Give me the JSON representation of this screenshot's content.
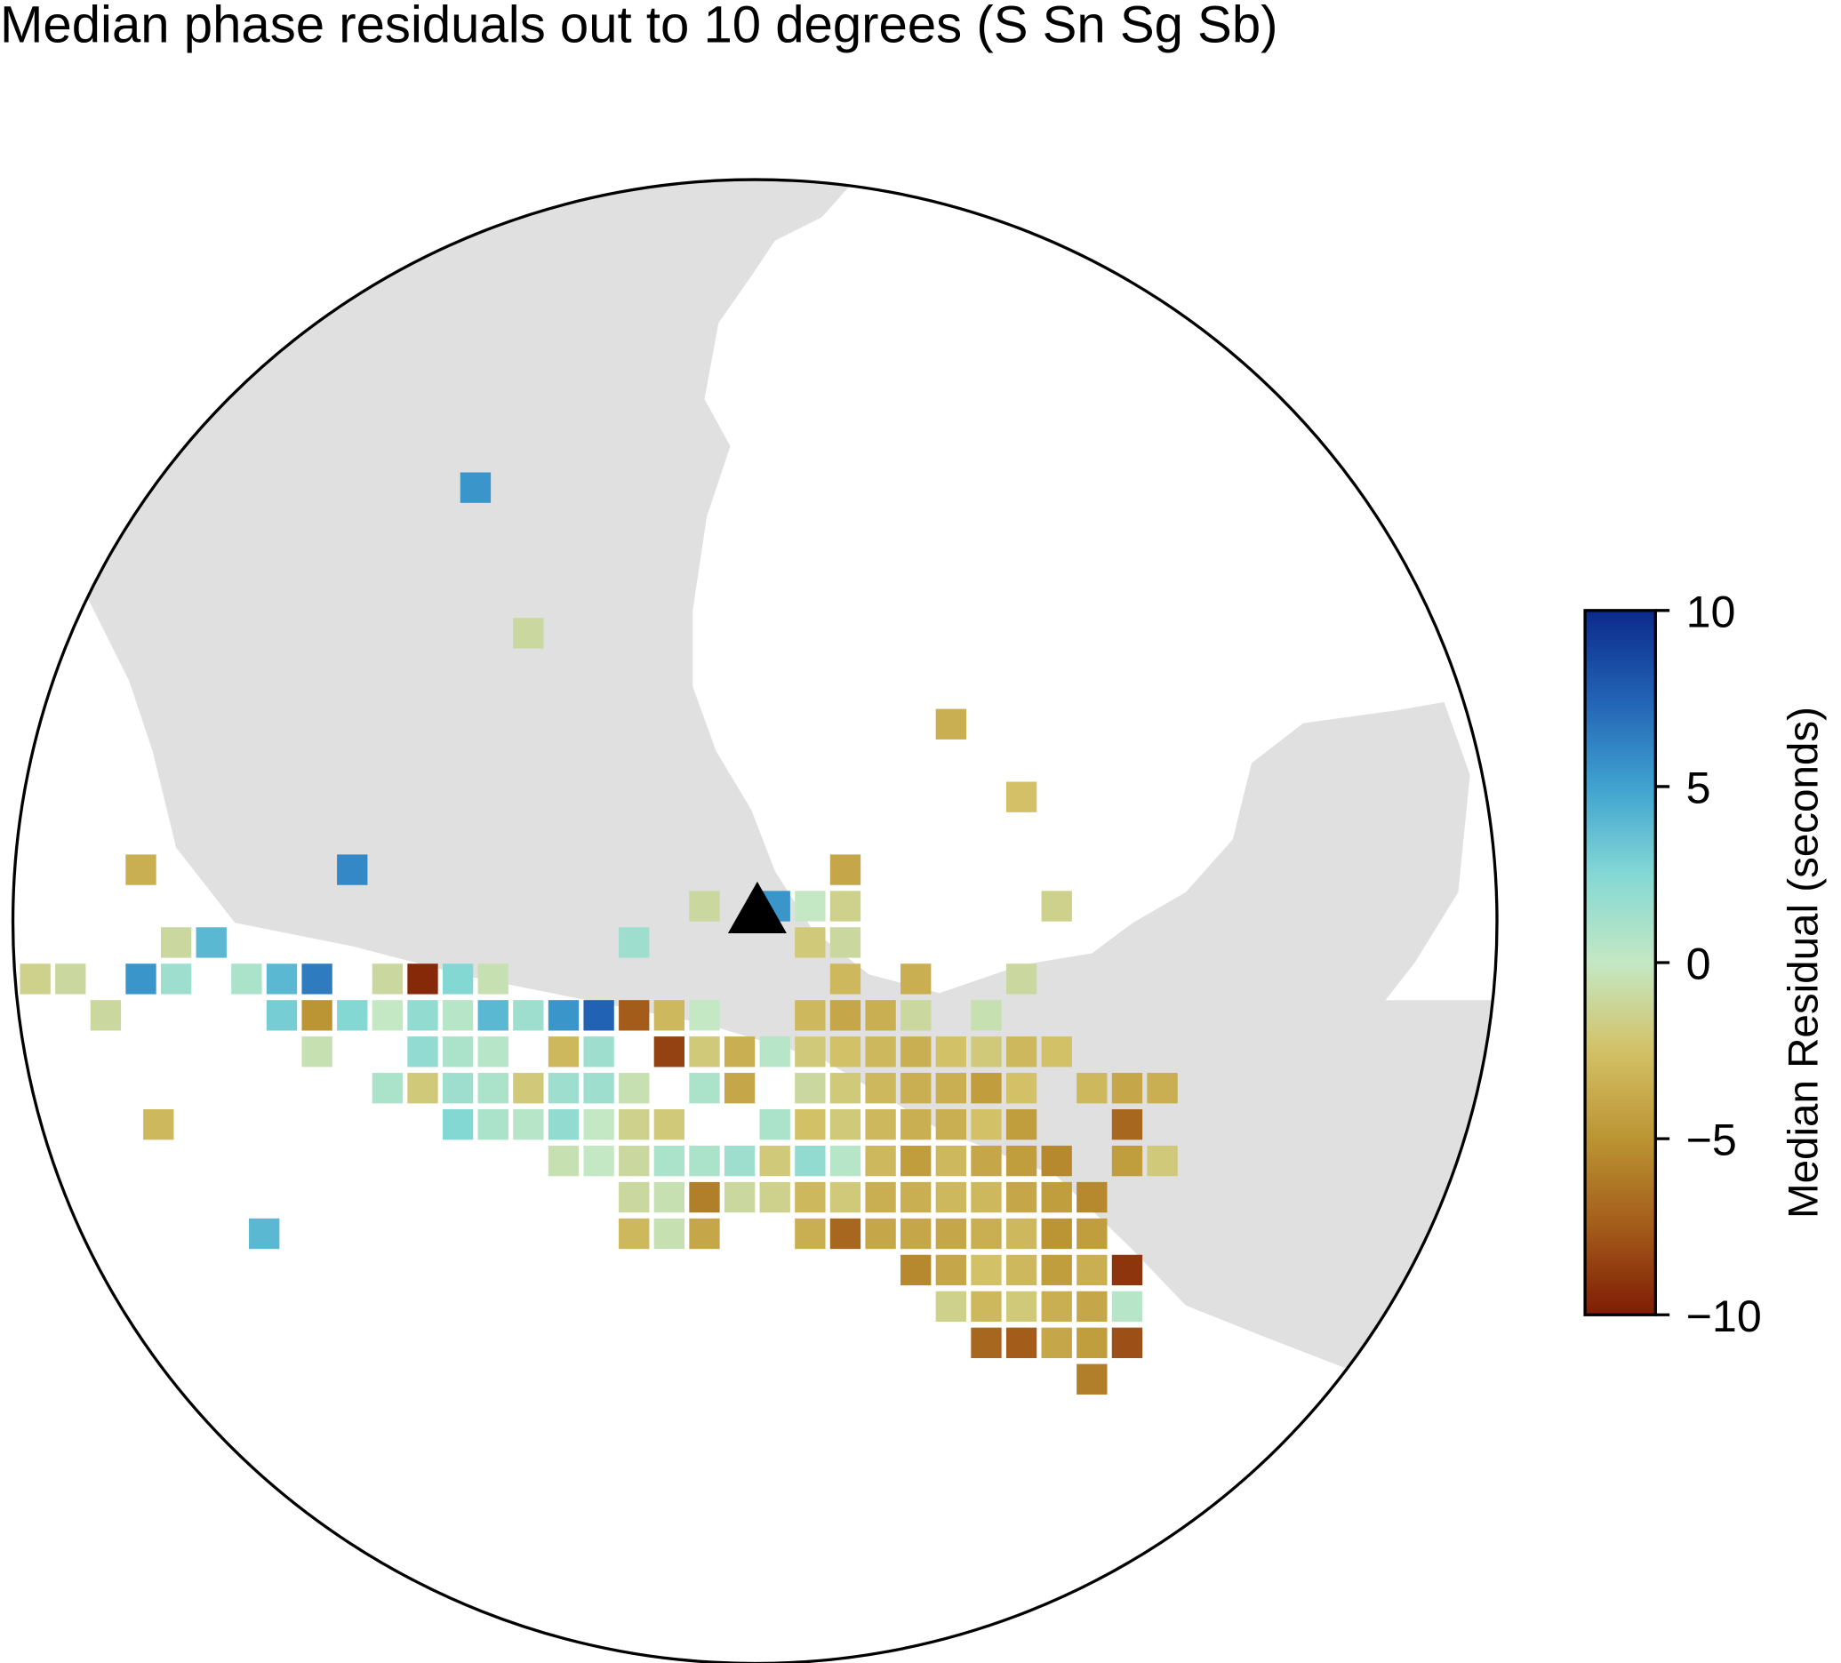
{
  "chart_data": {
    "type": "map",
    "title": "Median phase residuals out to 10 degrees (S Sn Sg Sb)",
    "colorbar_label": "Median Residual (seconds)",
    "clim": [
      -10,
      10
    ],
    "cticks": [
      {
        "value": -10,
        "label": "−10"
      },
      {
        "value": -5,
        "label": "−5"
      },
      0,
      5,
      10
    ],
    "colormap": [
      "#7f1c05",
      "#a35c1a",
      "#bb9433",
      "#d3c167",
      "#c4e8c4",
      "#84d8d4",
      "#3fa2d0",
      "#2262b4",
      "#0b2a8a"
    ],
    "station": {
      "lon": -96.0,
      "lat": 19.2
    },
    "cells": [
      [
        -100.0,
        25.0,
        5.5
      ],
      [
        -99.25,
        23.0,
        -1
      ],
      [
        -93.25,
        21.75,
        -3.5
      ],
      [
        -92.25,
        20.75,
        -2.5
      ],
      [
        -91.75,
        19.25,
        -1.5
      ],
      [
        -104.5,
        16.25,
        -3
      ],
      [
        -103.0,
        14.75,
        4
      ],
      [
        -104.75,
        19.75,
        -3.5
      ],
      [
        -101.75,
        19.75,
        6
      ],
      [
        -94.75,
        19.75,
        -4
      ],
      [
        -96.75,
        19.25,
        -1
      ],
      [
        -95.75,
        19.25,
        5.5
      ],
      [
        -95.25,
        19.25,
        0
      ],
      [
        -94.75,
        19.25,
        -1.5
      ],
      [
        -104.25,
        18.75,
        -1
      ],
      [
        -103.75,
        18.75,
        4
      ],
      [
        -97.75,
        18.75,
        1.5
      ],
      [
        -95.25,
        18.75,
        -2
      ],
      [
        -94.75,
        18.75,
        -1
      ],
      [
        -106.25,
        18.25,
        -1.5
      ],
      [
        -105.75,
        18.25,
        -1
      ],
      [
        -104.75,
        18.25,
        5.5
      ],
      [
        -104.25,
        18.25,
        1.5
      ],
      [
        -103.25,
        18.25,
        1
      ],
      [
        -102.75,
        18.25,
        4
      ],
      [
        -102.25,
        18.25,
        6.5
      ],
      [
        -101.25,
        18.25,
        -1
      ],
      [
        -100.75,
        18.25,
        -9.5
      ],
      [
        -100.25,
        18.25,
        2.5
      ],
      [
        -99.75,
        18.25,
        -0.5
      ],
      [
        -94.75,
        18.25,
        -3
      ],
      [
        -93.75,
        18.25,
        -3.5
      ],
      [
        -92.25,
        18.25,
        -1
      ],
      [
        -105.25,
        17.75,
        -1
      ],
      [
        -102.75,
        17.75,
        3
      ],
      [
        -102.25,
        17.75,
        -5
      ],
      [
        -101.75,
        17.75,
        2.5
      ],
      [
        -101.25,
        17.75,
        0
      ],
      [
        -100.75,
        17.75,
        2
      ],
      [
        -100.25,
        17.75,
        0.5
      ],
      [
        -99.75,
        17.75,
        4
      ],
      [
        -99.25,
        17.75,
        1.5
      ],
      [
        -98.75,
        17.75,
        5.5
      ],
      [
        -98.25,
        17.75,
        7.5
      ],
      [
        -97.75,
        17.75,
        -7.5
      ],
      [
        -97.25,
        17.75,
        -3
      ],
      [
        -96.75,
        17.75,
        0
      ],
      [
        -95.25,
        17.75,
        -3
      ],
      [
        -94.75,
        17.75,
        -4
      ],
      [
        -94.25,
        17.75,
        -3.5
      ],
      [
        -93.75,
        17.75,
        -1
      ],
      [
        -92.75,
        17.75,
        -0.5
      ],
      [
        -102.25,
        17.25,
        -0.5
      ],
      [
        -100.75,
        17.25,
        2
      ],
      [
        -100.25,
        17.25,
        1
      ],
      [
        -99.75,
        17.25,
        0.5
      ],
      [
        -98.75,
        17.25,
        -3
      ],
      [
        -98.25,
        17.25,
        1.5
      ],
      [
        -97.25,
        17.25,
        -8.5
      ],
      [
        -96.75,
        17.25,
        -2
      ],
      [
        -96.25,
        17.25,
        -3.5
      ],
      [
        -95.75,
        17.25,
        0.5
      ],
      [
        -95.25,
        17.25,
        -2
      ],
      [
        -94.75,
        17.25,
        -2.5
      ],
      [
        -94.25,
        17.25,
        -3
      ],
      [
        -93.75,
        17.25,
        -3.5
      ],
      [
        -93.25,
        17.25,
        -2.5
      ],
      [
        -92.75,
        17.25,
        -2
      ],
      [
        -92.25,
        17.25,
        -3
      ],
      [
        -91.75,
        17.25,
        -2.5
      ],
      [
        -101.25,
        16.75,
        1
      ],
      [
        -100.75,
        16.75,
        -2
      ],
      [
        -100.25,
        16.75,
        1.5
      ],
      [
        -99.75,
        16.75,
        1
      ],
      [
        -99.25,
        16.75,
        -2
      ],
      [
        -98.75,
        16.75,
        1.5
      ],
      [
        -98.25,
        16.75,
        1.5
      ],
      [
        -97.75,
        16.75,
        -0.5
      ],
      [
        -96.75,
        16.75,
        1
      ],
      [
        -96.25,
        16.75,
        -4
      ],
      [
        -95.25,
        16.75,
        -1
      ],
      [
        -94.75,
        16.75,
        -2
      ],
      [
        -94.25,
        16.75,
        -3
      ],
      [
        -93.75,
        16.75,
        -3.5
      ],
      [
        -93.25,
        16.75,
        -3.5
      ],
      [
        -92.75,
        16.75,
        -4.5
      ],
      [
        -92.25,
        16.75,
        -2.5
      ],
      [
        -91.25,
        16.75,
        -3
      ],
      [
        -90.75,
        16.75,
        -4
      ],
      [
        -90.25,
        16.75,
        -3.5
      ],
      [
        -100.25,
        16.25,
        2.5
      ],
      [
        -99.75,
        16.25,
        1
      ],
      [
        -99.25,
        16.25,
        0.5
      ],
      [
        -98.75,
        16.25,
        2
      ],
      [
        -98.25,
        16.25,
        0
      ],
      [
        -97.75,
        16.25,
        -1.5
      ],
      [
        -97.25,
        16.25,
        -2
      ],
      [
        -95.75,
        16.25,
        1
      ],
      [
        -95.25,
        16.25,
        -2.5
      ],
      [
        -94.75,
        16.25,
        -2
      ],
      [
        -94.25,
        16.25,
        -3
      ],
      [
        -93.75,
        16.25,
        -3.5
      ],
      [
        -93.25,
        16.25,
        -3.5
      ],
      [
        -92.75,
        16.25,
        -2.5
      ],
      [
        -92.25,
        16.25,
        -4.5
      ],
      [
        -90.75,
        16.25,
        -7
      ],
      [
        -98.75,
        15.75,
        -0.5
      ],
      [
        -98.25,
        15.75,
        0
      ],
      [
        -97.75,
        15.75,
        -1
      ],
      [
        -97.25,
        15.75,
        1
      ],
      [
        -96.75,
        15.75,
        1
      ],
      [
        -96.25,
        15.75,
        1.5
      ],
      [
        -95.75,
        15.75,
        -2
      ],
      [
        -95.25,
        15.75,
        2
      ],
      [
        -94.75,
        15.75,
        0.5
      ],
      [
        -94.25,
        15.75,
        -3
      ],
      [
        -93.75,
        15.75,
        -4.5
      ],
      [
        -93.25,
        15.75,
        -3
      ],
      [
        -92.75,
        15.75,
        -4
      ],
      [
        -92.25,
        15.75,
        -4.5
      ],
      [
        -91.75,
        15.75,
        -5.5
      ],
      [
        -90.75,
        15.75,
        -4.5
      ],
      [
        -90.25,
        15.75,
        -2
      ],
      [
        -97.75,
        15.25,
        -1
      ],
      [
        -97.25,
        15.25,
        -0.5
      ],
      [
        -96.75,
        15.25,
        -6
      ],
      [
        -96.25,
        15.25,
        -1
      ],
      [
        -95.75,
        15.25,
        -1.5
      ],
      [
        -95.25,
        15.25,
        -3
      ],
      [
        -94.75,
        15.25,
        -2
      ],
      [
        -94.25,
        15.25,
        -3.5
      ],
      [
        -93.75,
        15.25,
        -3.5
      ],
      [
        -93.25,
        15.25,
        -3
      ],
      [
        -92.75,
        15.25,
        -3
      ],
      [
        -92.25,
        15.25,
        -4
      ],
      [
        -91.75,
        15.25,
        -4.5
      ],
      [
        -91.25,
        15.25,
        -5.5
      ],
      [
        -97.75,
        14.75,
        -3
      ],
      [
        -97.25,
        14.75,
        -0.5
      ],
      [
        -96.75,
        14.75,
        -4
      ],
      [
        -95.25,
        14.75,
        -3.5
      ],
      [
        -94.75,
        14.75,
        -7
      ],
      [
        -94.25,
        14.75,
        -4
      ],
      [
        -93.75,
        14.75,
        -4
      ],
      [
        -93.25,
        14.75,
        -4
      ],
      [
        -92.75,
        14.75,
        -3.5
      ],
      [
        -92.25,
        14.75,
        -3
      ],
      [
        -91.75,
        14.75,
        -5
      ],
      [
        -91.25,
        14.75,
        -4.5
      ],
      [
        -93.75,
        14.25,
        -5.5
      ],
      [
        -93.25,
        14.25,
        -4
      ],
      [
        -92.75,
        14.25,
        -2.5
      ],
      [
        -92.25,
        14.25,
        -3
      ],
      [
        -91.75,
        14.25,
        -4.5
      ],
      [
        -91.25,
        14.25,
        -3.5
      ],
      [
        -90.75,
        14.25,
        -9
      ],
      [
        -93.25,
        13.75,
        -1.5
      ],
      [
        -92.75,
        13.75,
        -3
      ],
      [
        -92.25,
        13.75,
        -2
      ],
      [
        -91.75,
        13.75,
        -3.5
      ],
      [
        -91.25,
        13.75,
        -4
      ],
      [
        -90.75,
        13.75,
        0.5
      ],
      [
        -92.75,
        13.25,
        -7
      ],
      [
        -92.25,
        13.25,
        -7.5
      ],
      [
        -91.75,
        13.25,
        -4
      ],
      [
        -91.25,
        13.25,
        -4.5
      ],
      [
        -90.75,
        13.25,
        -8
      ],
      [
        -91.25,
        12.75,
        -6
      ]
    ]
  }
}
